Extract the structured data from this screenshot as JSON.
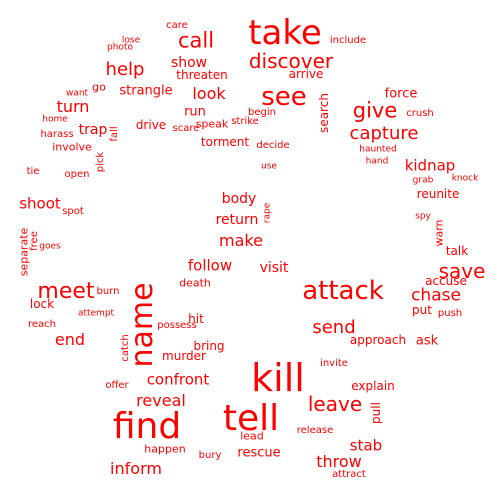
{
  "cloud": {
    "color": "#ff0000",
    "background": "#ffffff",
    "words": [
      "take",
      "kill",
      "tell",
      "find",
      "name",
      "attack",
      "see",
      "call",
      "discover",
      "give",
      "capture",
      "help",
      "meet",
      "save",
      "chase",
      "send",
      "leave",
      "look",
      "show",
      "turn",
      "make",
      "follow",
      "visit",
      "confront",
      "reveal",
      "inform",
      "threaten",
      "strangle",
      "trap",
      "drive",
      "run",
      "speak",
      "torment",
      "search",
      "force",
      "kidnap",
      "reunite",
      "shoot",
      "separate",
      "free",
      "body",
      "return",
      "death",
      "end",
      "bring",
      "hit",
      "murder",
      "possess",
      "approach",
      "ask",
      "put",
      "push",
      "accuse",
      "talk",
      "warn",
      "stab",
      "throw",
      "explain",
      "pull",
      "rescue",
      "lead",
      "release",
      "invite",
      "happen",
      "bury",
      "attract",
      "offer",
      "catch",
      "burn",
      "attempt",
      "lock",
      "reach",
      "goes",
      "spot",
      "tie",
      "open",
      "pick",
      "fall",
      "involve",
      "harass",
      "home",
      "want",
      "go",
      "photo",
      "lose",
      "care",
      "include",
      "arrive",
      "begin",
      "strike",
      "scare",
      "decide",
      "use",
      "rape",
      "haunted",
      "hand",
      "crush",
      "grab",
      "knock",
      "spy"
    ]
  }
}
